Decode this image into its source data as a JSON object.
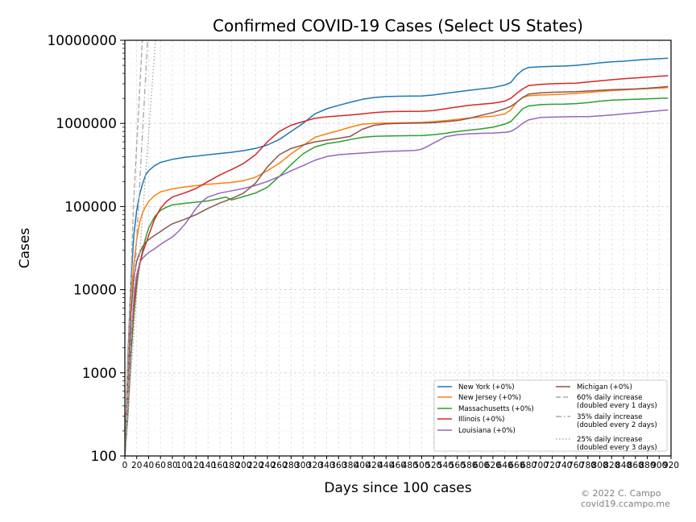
{
  "chart_data": {
    "type": "line",
    "title": "Confirmed COVID-19 Cases (Select US States)",
    "xlabel": "Days since 100 cases",
    "ylabel": "Cases",
    "xlim": [
      0,
      920
    ],
    "ylim": [
      100,
      10000000
    ],
    "yscale": "log",
    "grid": true,
    "legend_position": "lower-right",
    "xticks": [
      0,
      20,
      40,
      60,
      80,
      100,
      120,
      140,
      160,
      180,
      200,
      220,
      240,
      260,
      280,
      300,
      320,
      340,
      360,
      380,
      400,
      420,
      440,
      460,
      480,
      500,
      520,
      540,
      560,
      580,
      600,
      620,
      640,
      660,
      680,
      700,
      720,
      740,
      760,
      780,
      800,
      820,
      840,
      860,
      880,
      900,
      920
    ],
    "xtick_labels": [
      "0",
      "20",
      "40",
      "60",
      "80",
      "100",
      "120",
      "140",
      "160",
      "180",
      "200",
      "220",
      "240",
      "260",
      "280",
      "300",
      "320",
      "340",
      "360",
      "380",
      "400",
      "420",
      "440",
      "460",
      "480",
      "500",
      "520",
      "540",
      "560",
      "580",
      "600",
      "620",
      "640",
      "660",
      "680",
      "700",
      "720",
      "740",
      "760",
      "780",
      "800",
      "820",
      "840",
      "860",
      "880",
      "900",
      "920"
    ],
    "yticks": [
      100,
      1000,
      10000,
      100000,
      1000000,
      10000000
    ],
    "ytick_labels": [
      "100",
      "1000",
      "10000",
      "100000",
      "1000000",
      "10000000"
    ],
    "series": [
      {
        "name": "New York (+0%)",
        "color": "#1f77b4",
        "style": "solid",
        "x": [
          0,
          5,
          10,
          15,
          20,
          25,
          30,
          35,
          40,
          50,
          60,
          80,
          100,
          140,
          180,
          200,
          220,
          240,
          260,
          280,
          300,
          320,
          340,
          360,
          380,
          400,
          420,
          440,
          460,
          480,
          500,
          520,
          540,
          560,
          580,
          600,
          620,
          640,
          650,
          660,
          670,
          680,
          700,
          720,
          740,
          760,
          780,
          800,
          820,
          840,
          860,
          880,
          900,
          915
        ],
        "y": [
          100,
          1500,
          12000,
          45000,
          90000,
          140000,
          190000,
          240000,
          270000,
          310000,
          340000,
          370000,
          390000,
          420000,
          450000,
          470000,
          500000,
          550000,
          640000,
          800000,
          1000000,
          1300000,
          1500000,
          1650000,
          1800000,
          1950000,
          2050000,
          2100000,
          2120000,
          2130000,
          2140000,
          2200000,
          2300000,
          2400000,
          2500000,
          2600000,
          2700000,
          2900000,
          3100000,
          3800000,
          4400000,
          4700000,
          4800000,
          4850000,
          4900000,
          5000000,
          5150000,
          5350000,
          5500000,
          5600000,
          5750000,
          5900000,
          6000000,
          6100000
        ]
      },
      {
        "name": "New Jersey (+0%)",
        "color": "#ff7f0e",
        "style": "solid",
        "x": [
          0,
          5,
          10,
          15,
          20,
          25,
          30,
          35,
          40,
          50,
          60,
          80,
          100,
          140,
          180,
          200,
          220,
          240,
          260,
          280,
          300,
          320,
          340,
          360,
          380,
          400,
          420,
          440,
          460,
          480,
          500,
          520,
          540,
          560,
          580,
          600,
          620,
          640,
          650,
          660,
          670,
          680,
          700,
          720,
          740,
          760,
          780,
          800,
          820,
          840,
          860,
          880,
          900,
          915
        ],
        "y": [
          100,
          1200,
          8000,
          20000,
          40000,
          65000,
          85000,
          100000,
          115000,
          135000,
          150000,
          163000,
          172000,
          185000,
          195000,
          205000,
          225000,
          270000,
          330000,
          430000,
          540000,
          680000,
          750000,
          820000,
          900000,
          980000,
          1000000,
          1010000,
          1015000,
          1020000,
          1030000,
          1050000,
          1080000,
          1120000,
          1160000,
          1190000,
          1220000,
          1300000,
          1450000,
          1800000,
          2050000,
          2150000,
          2200000,
          2220000,
          2250000,
          2300000,
          2350000,
          2420000,
          2480000,
          2530000,
          2580000,
          2620000,
          2660000,
          2700000
        ]
      },
      {
        "name": "Massachusetts (+0%)",
        "color": "#2ca02c",
        "style": "solid",
        "x": [
          0,
          5,
          10,
          15,
          20,
          25,
          30,
          35,
          40,
          50,
          60,
          70,
          80,
          100,
          140,
          160,
          170,
          180,
          200,
          220,
          240,
          260,
          280,
          300,
          320,
          340,
          360,
          380,
          400,
          420,
          440,
          460,
          480,
          500,
          520,
          540,
          560,
          580,
          600,
          620,
          640,
          650,
          660,
          670,
          680,
          700,
          720,
          740,
          760,
          780,
          800,
          820,
          840,
          860,
          880,
          900,
          915
        ],
        "y": [
          100,
          300,
          1500,
          5000,
          11000,
          20000,
          30000,
          42000,
          55000,
          75000,
          90000,
          98000,
          105000,
          109000,
          117000,
          125000,
          130000,
          120000,
          132000,
          145000,
          170000,
          230000,
          320000,
          430000,
          520000,
          570000,
          600000,
          640000,
          680000,
          700000,
          705000,
          710000,
          712000,
          715000,
          730000,
          760000,
          800000,
          830000,
          860000,
          900000,
          980000,
          1050000,
          1250000,
          1500000,
          1620000,
          1680000,
          1700000,
          1710000,
          1730000,
          1780000,
          1850000,
          1900000,
          1930000,
          1950000,
          1970000,
          2000000,
          2020000
        ]
      },
      {
        "name": "Illinois (+0%)",
        "color": "#d62728",
        "style": "solid",
        "x": [
          0,
          5,
          10,
          15,
          20,
          25,
          30,
          35,
          40,
          50,
          60,
          70,
          80,
          100,
          120,
          140,
          160,
          180,
          200,
          220,
          240,
          260,
          280,
          300,
          320,
          340,
          360,
          380,
          400,
          420,
          440,
          460,
          480,
          500,
          520,
          540,
          560,
          580,
          600,
          620,
          640,
          650,
          660,
          670,
          680,
          700,
          720,
          740,
          760,
          780,
          800,
          820,
          840,
          860,
          880,
          900,
          915
        ],
        "y": [
          100,
          400,
          2000,
          6000,
          13000,
          20000,
          28000,
          35000,
          45000,
          70000,
          95000,
          115000,
          130000,
          145000,
          165000,
          200000,
          240000,
          280000,
          330000,
          420000,
          600000,
          800000,
          950000,
          1050000,
          1150000,
          1200000,
          1230000,
          1260000,
          1300000,
          1350000,
          1380000,
          1390000,
          1395000,
          1400000,
          1430000,
          1500000,
          1580000,
          1650000,
          1700000,
          1750000,
          1850000,
          2000000,
          2300000,
          2600000,
          2850000,
          2950000,
          3000000,
          3030000,
          3050000,
          3150000,
          3250000,
          3350000,
          3450000,
          3530000,
          3600000,
          3700000,
          3750000
        ]
      },
      {
        "name": "Louisiana (+0%)",
        "color": "#9467bd",
        "style": "solid",
        "x": [
          0,
          5,
          10,
          15,
          20,
          25,
          30,
          35,
          40,
          50,
          60,
          70,
          80,
          90,
          100,
          110,
          120,
          130,
          140,
          160,
          180,
          200,
          220,
          240,
          260,
          280,
          300,
          320,
          340,
          360,
          380,
          400,
          420,
          440,
          460,
          480,
          490,
          500,
          510,
          520,
          530,
          540,
          560,
          580,
          600,
          620,
          640,
          650,
          660,
          670,
          680,
          700,
          720,
          740,
          760,
          780,
          800,
          820,
          840,
          860,
          880,
          900,
          915
        ],
        "y": [
          100,
          500,
          2500,
          8000,
          15000,
          21000,
          24000,
          26000,
          28000,
          31000,
          35000,
          39000,
          43000,
          50000,
          60000,
          75000,
          95000,
          115000,
          130000,
          145000,
          155000,
          165000,
          180000,
          200000,
          230000,
          270000,
          310000,
          360000,
          400000,
          420000,
          430000,
          440000,
          450000,
          460000,
          465000,
          470000,
          475000,
          490000,
          530000,
          580000,
          630000,
          690000,
          730000,
          750000,
          760000,
          765000,
          780000,
          800000,
          880000,
          1000000,
          1100000,
          1180000,
          1190000,
          1200000,
          1205000,
          1210000,
          1230000,
          1260000,
          1300000,
          1340000,
          1380000,
          1420000,
          1450000
        ]
      },
      {
        "name": "Michigan (+0%)",
        "color": "#8c564b",
        "style": "solid",
        "x": [
          0,
          5,
          10,
          15,
          20,
          25,
          30,
          35,
          40,
          50,
          60,
          70,
          80,
          100,
          120,
          140,
          160,
          180,
          200,
          220,
          240,
          260,
          280,
          300,
          320,
          340,
          360,
          380,
          400,
          420,
          440,
          460,
          480,
          500,
          520,
          540,
          560,
          580,
          600,
          620,
          640,
          650,
          660,
          670,
          680,
          700,
          720,
          740,
          760,
          780,
          800,
          820,
          840,
          860,
          880,
          900,
          915
        ],
        "y": [
          100,
          800,
          5000,
          14000,
          22000,
          28000,
          33000,
          37000,
          40000,
          45000,
          50000,
          56000,
          62000,
          70000,
          80000,
          95000,
          110000,
          125000,
          145000,
          190000,
          300000,
          420000,
          500000,
          550000,
          600000,
          630000,
          660000,
          700000,
          850000,
          950000,
          990000,
          1000000,
          1005000,
          1010000,
          1020000,
          1050000,
          1080000,
          1150000,
          1250000,
          1350000,
          1500000,
          1600000,
          1800000,
          2050000,
          2250000,
          2330000,
          2370000,
          2390000,
          2410000,
          2450000,
          2500000,
          2540000,
          2570000,
          2600000,
          2650000,
          2720000,
          2780000
        ]
      },
      {
        "name": "60% daily increase\n(doubled every 1 days)",
        "color": "#aaaaaa",
        "style": "dashed",
        "x": [
          0,
          14.4,
          29.4
        ],
        "y": [
          100,
          100000,
          10000000
        ]
      },
      {
        "name": "35% daily increase\n(doubled every 2 days)",
        "color": "#aaaaaa",
        "style": "dashdot",
        "x": [
          0,
          23,
          38.4
        ],
        "y": [
          100,
          100000,
          10000000
        ]
      },
      {
        "name": "25% daily increase\n(doubled every 3 days)",
        "color": "#aaaaaa",
        "style": "dotted",
        "x": [
          0,
          31,
          51.6
        ],
        "y": [
          100,
          100000,
          10000000
        ]
      }
    ],
    "legend": [
      {
        "label": "New York (+0%)",
        "color": "#1f77b4",
        "style": "solid"
      },
      {
        "label": "New Jersey (+0%)",
        "color": "#ff7f0e",
        "style": "solid"
      },
      {
        "label": "Massachusetts (+0%)",
        "color": "#2ca02c",
        "style": "solid"
      },
      {
        "label": "Illinois (+0%)",
        "color": "#d62728",
        "style": "solid"
      },
      {
        "label": "Louisiana (+0%)",
        "color": "#9467bd",
        "style": "solid"
      },
      {
        "label": "Michigan (+0%)",
        "color": "#8c564b",
        "style": "solid"
      },
      {
        "label": "60% daily increase",
        "label2": "(doubled every 1 days)",
        "color": "#aaaaaa",
        "style": "dashed"
      },
      {
        "label": "35% daily increase",
        "label2": "(doubled every 2 days)",
        "color": "#aaaaaa",
        "style": "dashdot"
      },
      {
        "label": "25% daily increase",
        "label2": "(doubled every 3 days)",
        "color": "#aaaaaa",
        "style": "dotted"
      }
    ]
  },
  "credit": {
    "line1": "© 2022 C. Campo",
    "line2": "covid19.ccampo.me"
  }
}
